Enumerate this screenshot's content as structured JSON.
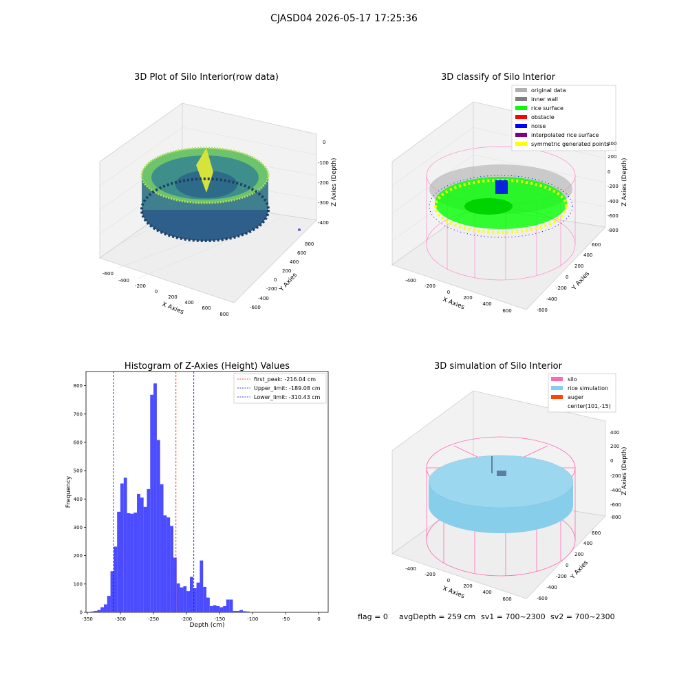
{
  "figure": {
    "suptitle": "CJASD04 2026-05-17 17:25:36",
    "status": {
      "flag": "flag = 0",
      "avg_depth": "avgDepth = 259 cm",
      "sv1": "sv1 = 700~2300",
      "sv2": "sv2 = 700~2300"
    }
  },
  "panels": {
    "raw": {
      "title": "3D Plot of Silo Interior(row data)",
      "xlabel": "X Axies",
      "ylabel": "Y Axies",
      "zlabel": "Z Axies (Depth)",
      "xticks": [
        "-600",
        "-400",
        "-200",
        "0",
        "200",
        "400",
        "600",
        "800"
      ],
      "yticks": [
        "-600",
        "-400",
        "-200",
        "0",
        "200",
        "400",
        "600",
        "800"
      ],
      "zticks": [
        "0",
        "-100",
        "-200",
        "-300",
        "-400"
      ]
    },
    "classify": {
      "title": "3D classify of Silo Interior",
      "xlabel": "X Axies",
      "ylabel": "Y Axies",
      "zlabel": "Z Axies (Depth)",
      "xticks": [
        "-400",
        "-200",
        "0",
        "200",
        "400",
        "600"
      ],
      "yticks": [
        "-600",
        "-400",
        "-200",
        "0",
        "200",
        "400",
        "600"
      ],
      "zticks": [
        "400",
        "200",
        "0",
        "-200",
        "-400",
        "-600",
        "-800"
      ],
      "legend": [
        {
          "label": "original data",
          "color": "#b0b0b0"
        },
        {
          "label": "inner wall",
          "color": "#808080"
        },
        {
          "label": "rice surface",
          "color": "#00ff00"
        },
        {
          "label": "obstacle",
          "color": "#ff0000"
        },
        {
          "label": "noise",
          "color": "#0000ff"
        },
        {
          "label": "interpolated rice surface",
          "color": "#800080"
        },
        {
          "label": "symmetric generated points",
          "color": "#ffff00"
        }
      ]
    },
    "simulation": {
      "title": "3D simulation of Silo Interior",
      "xlabel": "X Axies",
      "ylabel": "Y Axies",
      "zlabel": "Z Axies (Depth)",
      "xticks": [
        "-400",
        "-200",
        "0",
        "200",
        "400",
        "600"
      ],
      "yticks": [
        "-600",
        "-400",
        "-200",
        "0",
        "200",
        "400",
        "600"
      ],
      "zticks": [
        "400",
        "200",
        "0",
        "-200",
        "-400",
        "-600",
        "-800"
      ],
      "legend": [
        {
          "label": "silo",
          "color": "#ff69b4"
        },
        {
          "label": "rice simulation",
          "color": "#87ceeb"
        },
        {
          "label": "auger",
          "color": "#ff4500"
        },
        {
          "label": "center(101,-15)",
          "color": ""
        }
      ]
    }
  },
  "chart_data": [
    {
      "type": "bar",
      "title": "Histogram of Z-Axies (Height) Values",
      "xlabel": "Depth (cm)",
      "ylabel": "Frequency",
      "xlim": [
        -352,
        14
      ],
      "ylim": [
        0,
        850
      ],
      "xticks": [
        -350,
        -300,
        -250,
        -200,
        -150,
        -100,
        -50,
        0
      ],
      "yticks": [
        0,
        100,
        200,
        300,
        400,
        500,
        600,
        700,
        800
      ],
      "bar_color": "#4b4bff",
      "bins": [
        {
          "x0": -345,
          "x1": -340,
          "y": 3
        },
        {
          "x0": -340,
          "x1": -335,
          "y": 5
        },
        {
          "x0": -335,
          "x1": -330,
          "y": 8
        },
        {
          "x0": -330,
          "x1": -325,
          "y": 18
        },
        {
          "x0": -325,
          "x1": -320,
          "y": 28
        },
        {
          "x0": -320,
          "x1": -315,
          "y": 58
        },
        {
          "x0": -315,
          "x1": -310,
          "y": 145
        },
        {
          "x0": -310,
          "x1": -305,
          "y": 232
        },
        {
          "x0": -305,
          "x1": -300,
          "y": 355
        },
        {
          "x0": -300,
          "x1": -295,
          "y": 455
        },
        {
          "x0": -295,
          "x1": -290,
          "y": 475
        },
        {
          "x0": -290,
          "x1": -285,
          "y": 350
        },
        {
          "x0": -285,
          "x1": -280,
          "y": 348
        },
        {
          "x0": -280,
          "x1": -275,
          "y": 352
        },
        {
          "x0": -275,
          "x1": -270,
          "y": 418
        },
        {
          "x0": -270,
          "x1": -265,
          "y": 405
        },
        {
          "x0": -265,
          "x1": -260,
          "y": 372
        },
        {
          "x0": -260,
          "x1": -255,
          "y": 435
        },
        {
          "x0": -255,
          "x1": -250,
          "y": 768
        },
        {
          "x0": -250,
          "x1": -245,
          "y": 808
        },
        {
          "x0": -245,
          "x1": -240,
          "y": 608
        },
        {
          "x0": -240,
          "x1": -235,
          "y": 452
        },
        {
          "x0": -235,
          "x1": -230,
          "y": 342
        },
        {
          "x0": -230,
          "x1": -225,
          "y": 335
        },
        {
          "x0": -225,
          "x1": -220,
          "y": 305
        },
        {
          "x0": -220,
          "x1": -215,
          "y": 193
        },
        {
          "x0": -215,
          "x1": -210,
          "y": 102
        },
        {
          "x0": -210,
          "x1": -205,
          "y": 88
        },
        {
          "x0": -205,
          "x1": -200,
          "y": 92
        },
        {
          "x0": -200,
          "x1": -195,
          "y": 75
        },
        {
          "x0": -195,
          "x1": -190,
          "y": 125
        },
        {
          "x0": -190,
          "x1": -185,
          "y": 85
        },
        {
          "x0": -185,
          "x1": -180,
          "y": 105
        },
        {
          "x0": -180,
          "x1": -175,
          "y": 183
        },
        {
          "x0": -175,
          "x1": -170,
          "y": 90
        },
        {
          "x0": -170,
          "x1": -165,
          "y": 52
        },
        {
          "x0": -165,
          "x1": -160,
          "y": 22
        },
        {
          "x0": -160,
          "x1": -155,
          "y": 25
        },
        {
          "x0": -155,
          "x1": -150,
          "y": 22
        },
        {
          "x0": -150,
          "x1": -145,
          "y": 18
        },
        {
          "x0": -145,
          "x1": -140,
          "y": 22
        },
        {
          "x0": -140,
          "x1": -135,
          "y": 45
        },
        {
          "x0": -135,
          "x1": -130,
          "y": 45
        },
        {
          "x0": -130,
          "x1": -125,
          "y": 5
        },
        {
          "x0": -125,
          "x1": -120,
          "y": 5
        },
        {
          "x0": -120,
          "x1": -115,
          "y": 8
        },
        {
          "x0": -115,
          "x1": -110,
          "y": 4
        },
        {
          "x0": -110,
          "x1": -105,
          "y": 3
        }
      ],
      "vlines": [
        {
          "x": -216.04,
          "color": "#ff0000",
          "label": "first_peak: -216.04 cm"
        },
        {
          "x": -189.08,
          "color": "#0000ff",
          "label": "Upper_limit: -189.08 cm"
        },
        {
          "x": -310.43,
          "color": "#0000ff",
          "label": "Lower_limit: -310.43 cm"
        }
      ],
      "legend_position": "upper right"
    }
  ]
}
